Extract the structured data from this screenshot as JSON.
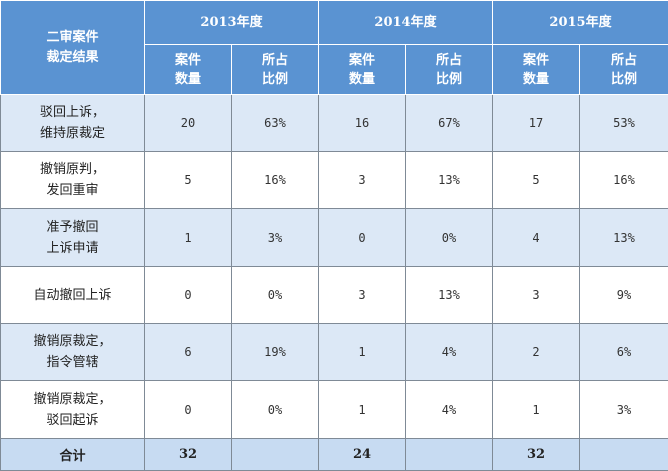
{
  "header": {
    "corner_line1": "二审案件",
    "corner_line2": "裁定结果",
    "years": [
      "2013年度",
      "2014年度",
      "2015年度"
    ],
    "col_count_line1": "案件",
    "col_count_line2": "数量",
    "col_pct_line1": "所占",
    "col_pct_line2": "比例"
  },
  "rows": [
    {
      "label1": "驳回上诉，",
      "label2": "维持原裁定",
      "cells": [
        "20",
        "63%",
        "16",
        "67%",
        "17",
        "53%"
      ]
    },
    {
      "label1": "撤销原判，",
      "label2": "发回重审",
      "cells": [
        "5",
        "16%",
        "3",
        "13%",
        "5",
        "16%"
      ]
    },
    {
      "label1": "准予撤回",
      "label2": "上诉申请",
      "cells": [
        "1",
        "3%",
        "0",
        "0%",
        "4",
        "13%"
      ]
    },
    {
      "label1": "自动撤回上诉",
      "label2": "",
      "cells": [
        "0",
        "0%",
        "3",
        "13%",
        "3",
        "9%"
      ]
    },
    {
      "label1": "撤销原裁定，",
      "label2": "指令管辖",
      "cells": [
        "6",
        "19%",
        "1",
        "4%",
        "2",
        "6%"
      ]
    },
    {
      "label1": "撤销原裁定，",
      "label2": "驳回起诉",
      "cells": [
        "0",
        "0%",
        "1",
        "4%",
        "1",
        "3%"
      ]
    }
  ],
  "total": {
    "label": "合计",
    "cells": [
      "32",
      "",
      "24",
      "",
      "32",
      ""
    ]
  },
  "colors": {
    "header_bg": "#5a93d2",
    "row_alt_bg": "#dce8f6",
    "total_bg": "#c7dbf2"
  }
}
